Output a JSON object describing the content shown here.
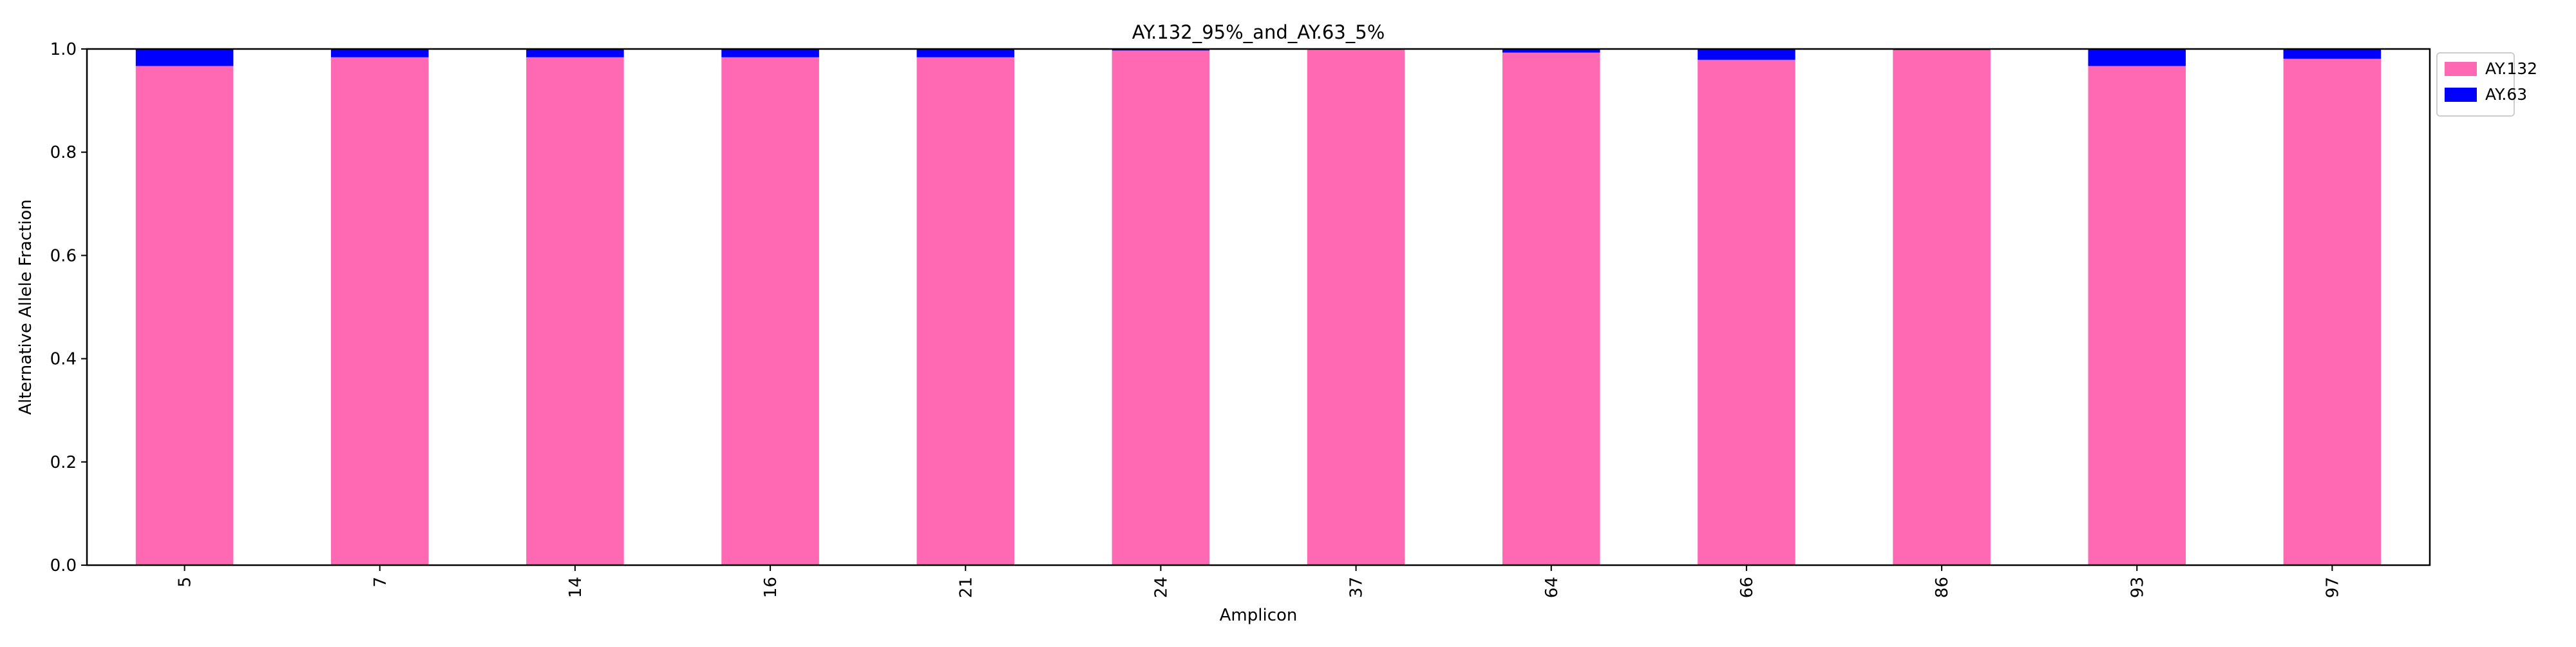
{
  "chart_data": {
    "type": "bar",
    "stacked": true,
    "title": "AY.132_95%_and_AY.63_5%",
    "xlabel": "Amplicon",
    "ylabel": "Alternative Allele Fraction",
    "categories": [
      "5",
      "7",
      "14",
      "16",
      "21",
      "24",
      "37",
      "64",
      "66",
      "86",
      "93",
      "97"
    ],
    "ylim": [
      0,
      1.0
    ],
    "yticks": [
      "0.0",
      "0.2",
      "0.4",
      "0.6",
      "0.8",
      "1.0"
    ],
    "grid": false,
    "legend_position": "outside-top-right",
    "series": [
      {
        "name": "AY.132",
        "color": "#ff69b4",
        "values": [
          0.967,
          0.984,
          0.984,
          0.984,
          0.984,
          0.997,
          1.0,
          0.993,
          0.979,
          0.998,
          0.967,
          0.981
        ]
      },
      {
        "name": "AY.63",
        "color": "#0000ff",
        "values": [
          0.033,
          0.016,
          0.016,
          0.016,
          0.016,
          0.003,
          0.0,
          0.007,
          0.021,
          0.002,
          0.033,
          0.019
        ]
      }
    ]
  }
}
